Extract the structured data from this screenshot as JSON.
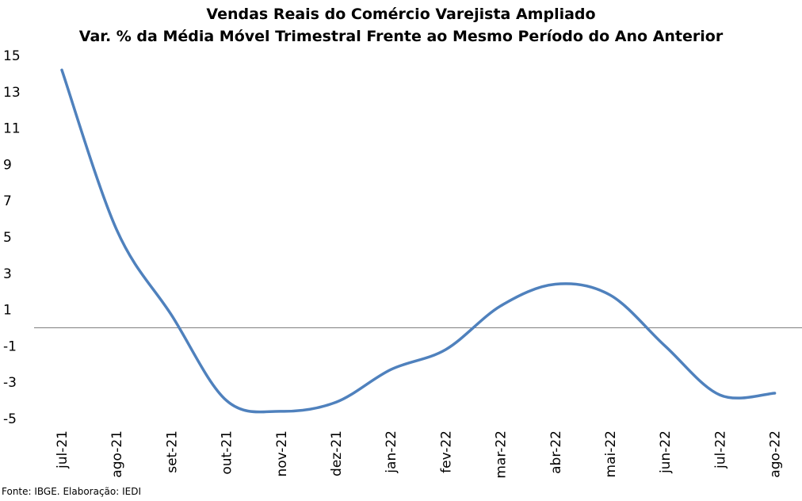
{
  "chart_data": {
    "type": "line",
    "title": "Vendas Reais do Comércio Varejista Ampliado",
    "subtitle": "Var. % da Média Móvel Trimestral Frente ao Mesmo Período do Ano Anterior",
    "categories": [
      "jul-21",
      "ago-21",
      "set-21",
      "out-21",
      "nov-21",
      "dez-21",
      "jan-22",
      "fev-22",
      "mar-22",
      "abr-22",
      "mai-22",
      "jun-22",
      "jul-22",
      "ago-22"
    ],
    "series": [
      {
        "values": [
          14.2,
          5.4,
          0.7,
          -4.0,
          -4.6,
          -4.1,
          -2.3,
          -1.2,
          1.2,
          2.4,
          1.8,
          -1.0,
          -3.7,
          -3.6
        ]
      }
    ],
    "y_ticks": [
      15,
      13,
      11,
      9,
      7,
      5,
      3,
      1,
      -1,
      -3,
      -5
    ],
    "ylim": [
      -5,
      15
    ],
    "zero_line": true,
    "grid": false,
    "line_color": "#4f81bd",
    "axis_color": "#808080"
  },
  "footer": {
    "source": "Fonte: IBGE. Elaboração: IEDI"
  }
}
